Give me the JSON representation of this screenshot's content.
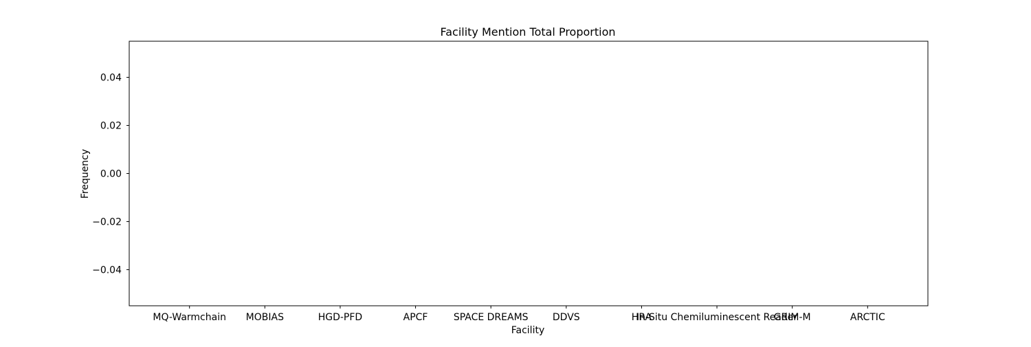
{
  "chart_data": {
    "type": "bar",
    "title": "Facility Mention Total Proportion",
    "xlabel": "Facility",
    "ylabel": "Frequency",
    "categories": [
      "MQ-Warmchain",
      "MOBIAS",
      "HGD-PFD",
      "APCF",
      "SPACE DREAMS",
      "DDVS",
      "HRA",
      "In-Situ Chemiluminescent Reader",
      "GRIM-M",
      "ARCTIC"
    ],
    "values": [
      0,
      0,
      0,
      0,
      0,
      0,
      0,
      0,
      0,
      0
    ],
    "ylim": [
      -0.055,
      0.055
    ],
    "yticks": [
      -0.04,
      -0.02,
      0.0,
      0.02,
      0.04
    ],
    "ytick_labels": [
      "−0.04",
      "−0.02",
      "0.00",
      "0.02",
      "0.04"
    ],
    "grid": false,
    "colors": {
      "bar": "#1f77b4",
      "axis": "#000000",
      "background": "#ffffff"
    }
  }
}
